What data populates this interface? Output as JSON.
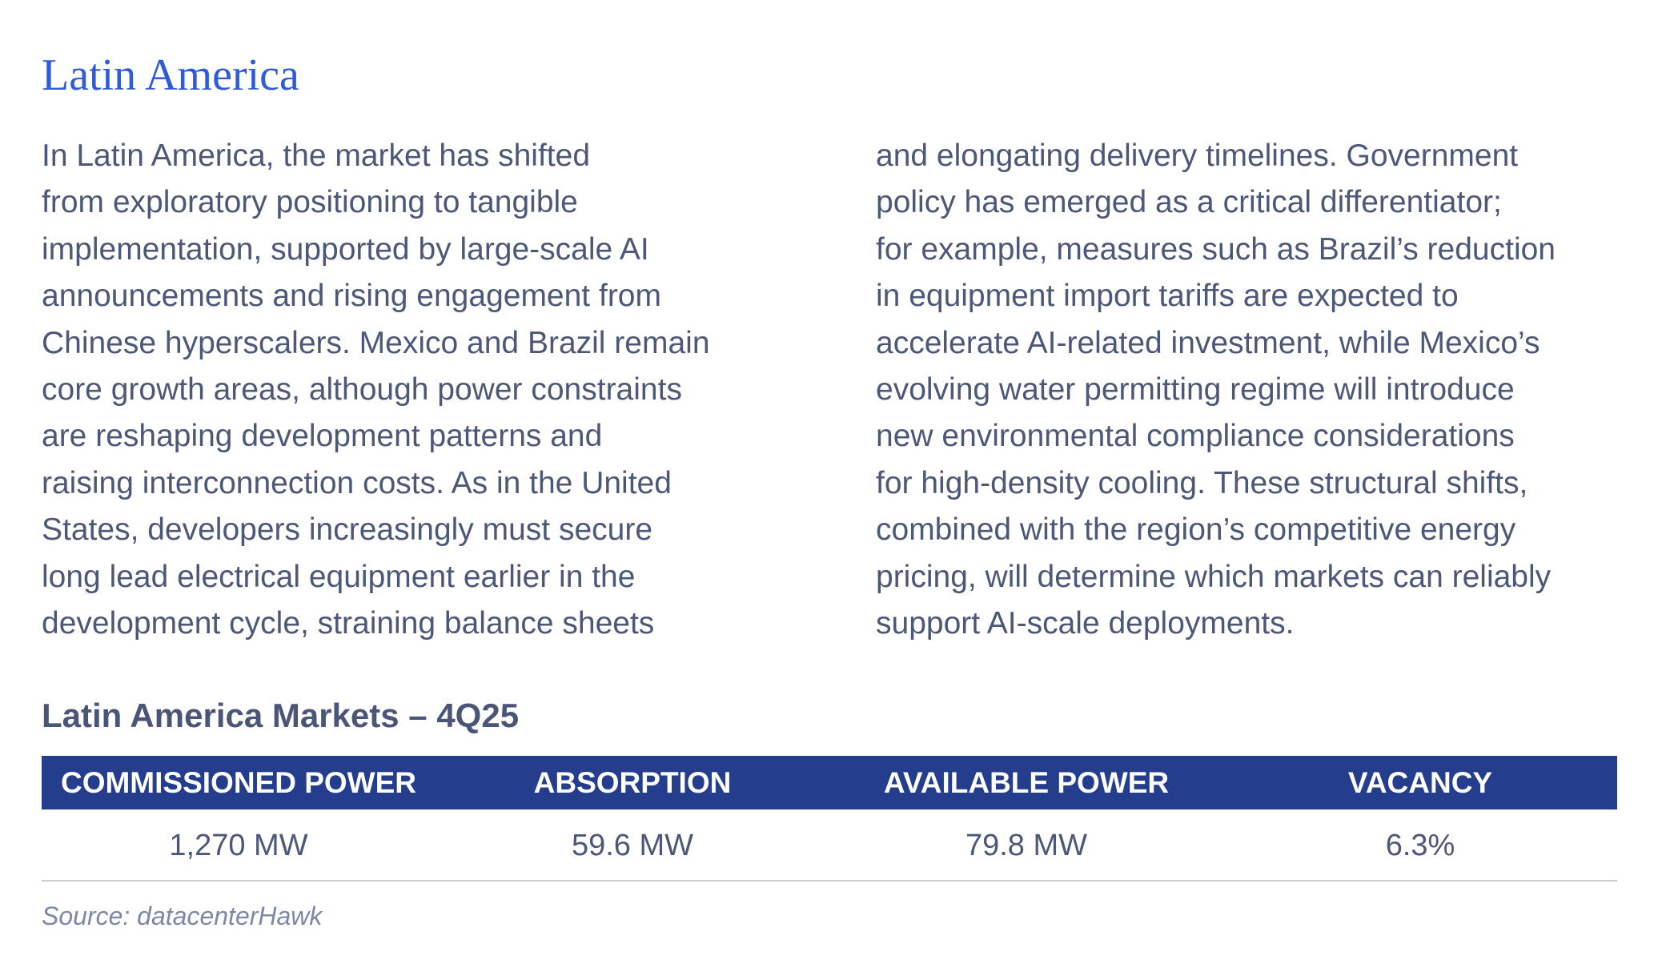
{
  "title": "Latin America",
  "body": {
    "columns": [
      [
        "In Latin America, the market has shifted",
        "from exploratory positioning to tangible",
        "implementation, supported by large-scale AI",
        "announcements and rising engagement from",
        "Chinese hyperscalers. Mexico and Brazil remain",
        "core growth areas, although power constraints",
        "are reshaping development patterns and",
        "raising interconnection costs. As in the United",
        "States, developers increasingly must secure",
        "long lead electrical equipment earlier in the",
        "development cycle, straining balance sheets"
      ],
      [
        "and elongating delivery timelines. Government",
        "policy has emerged as a critical differentiator;",
        "for example, measures such as Brazil’s reduction",
        "in equipment import tariffs are expected to",
        "accelerate AI-related investment, while Mexico’s",
        "evolving water permitting regime will introduce",
        "new environmental compliance considerations",
        "for high-density cooling. These structural shifts,",
        "combined with the region’s competitive energy",
        "pricing, will determine which markets can reliably",
        "support AI-scale deployments."
      ]
    ]
  },
  "table": {
    "title": "Latin America Markets – 4Q25",
    "headers": [
      "COMMISSIONED POWER",
      "ABSORPTION",
      "AVAILABLE POWER",
      "VACANCY"
    ],
    "rows": [
      [
        "1,270 MW",
        "59.6 MW",
        "79.8 MW",
        "6.3%"
      ]
    ]
  },
  "source": "Source: datacenterHawk"
}
